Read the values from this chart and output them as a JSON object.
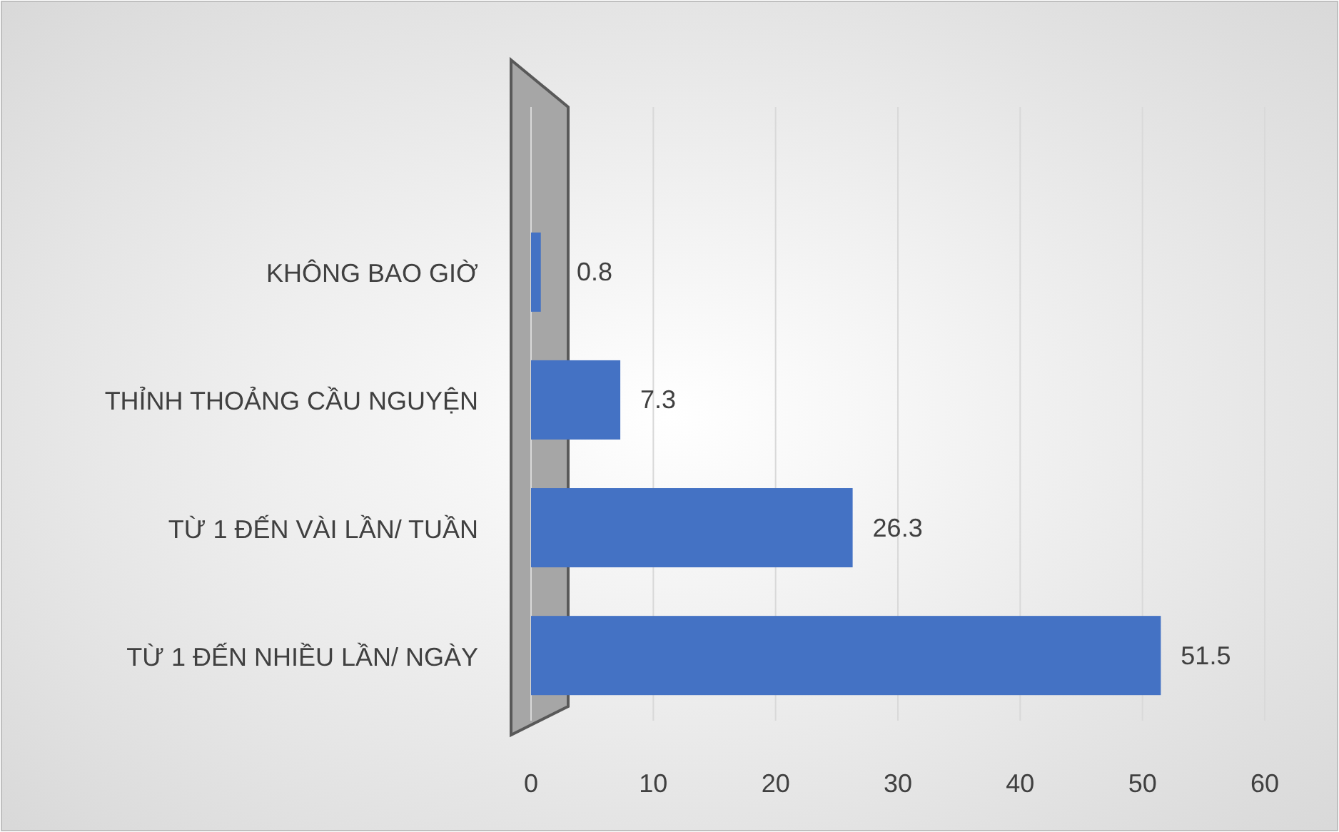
{
  "chart_data": {
    "type": "bar",
    "orientation": "horizontal",
    "categories": [
      "KHÔNG BAO GIỜ",
      "THỈNH THOẢNG CẦU NGUYỆN",
      "TỪ 1 ĐẾN VÀI LẦN/ TUẦN",
      "TỪ 1 ĐẾN NHIỀU LẦN/ NGÀY"
    ],
    "values": [
      0.8,
      7.3,
      26.3,
      51.5
    ],
    "color": "#4472c4",
    "xlim": [
      0,
      60
    ],
    "xticks": [
      0,
      10,
      20,
      30,
      40,
      50,
      60
    ],
    "grid": "x",
    "data_labels": true
  }
}
